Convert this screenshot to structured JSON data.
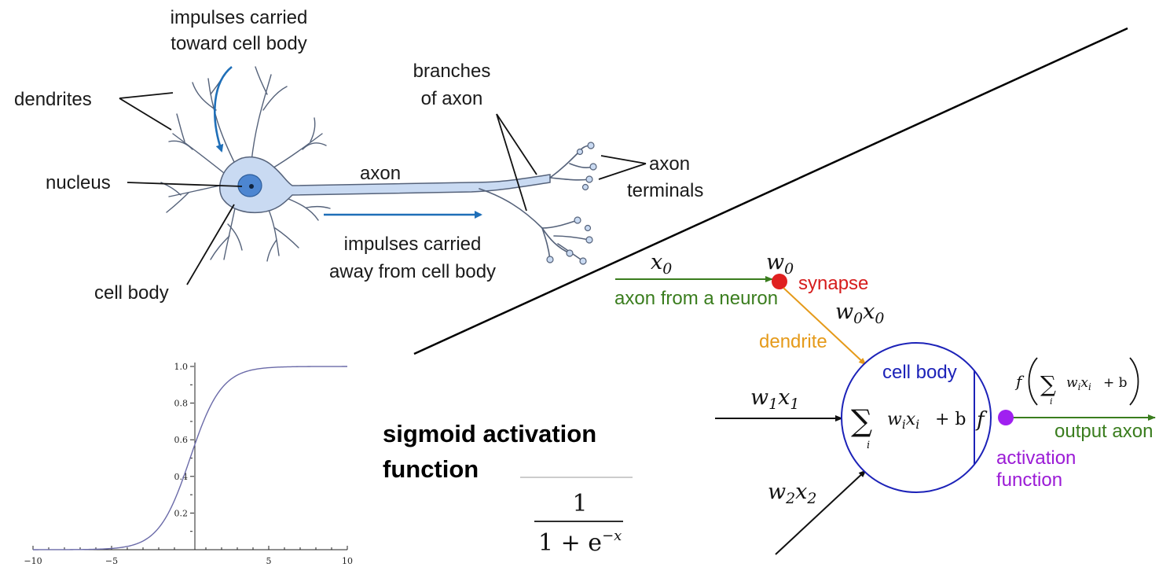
{
  "neuron": {
    "labels": {
      "impulses_in_1": "impulses carried",
      "impulses_in_2": "toward cell body",
      "dendrites": "dendrites",
      "nucleus": "nucleus",
      "cell_body": "cell body",
      "axon": "axon",
      "branches_1": "branches",
      "branches_2": "of axon",
      "terminals_1": "axon",
      "terminals_2": "terminals",
      "impulses_out_1": "impulses carried",
      "impulses_out_2": "away from cell body"
    },
    "colors": {
      "cell_fill": "#c9daf2",
      "cell_stroke": "#55627a",
      "nucleus": "#4d86d1",
      "arrow": "#1f6fb8"
    }
  },
  "model": {
    "x0": "x",
    "x0_sub": "0",
    "w0": "w",
    "w0_sub": "0",
    "w0x0_a": "w",
    "w0x0_a_sub": "0",
    "w0x0_b": "x",
    "w0x0_b_sub": "0",
    "w1x1_a": "w",
    "w1x1_a_sub": "1",
    "w1x1_b": "x",
    "w1x1_b_sub": "1",
    "w2x2_a": "w",
    "w2x2_a_sub": "2",
    "w2x2_b": "x",
    "w2x2_b_sub": "2",
    "synapse": "synapse",
    "axon_from": "axon from a neuron",
    "dendrite": "dendrite",
    "cell_body": "cell body",
    "sum_symbol": "∑",
    "sum_index": "i",
    "sum_term_w": "w",
    "sum_term_x": "x",
    "sum_term_sub": "i",
    "plus_b": "+ b",
    "f": "f",
    "output_axon": "output axon",
    "activation_1": "activation",
    "activation_2": "function",
    "out_f": "f",
    "colors": {
      "green": "#3a7d1e",
      "red": "#e02020",
      "orange": "#e59a1a",
      "blue": "#1c22b8",
      "purple": "#a020f0"
    }
  },
  "sigmoid": {
    "title_1": "sigmoid activation",
    "title_2": "function",
    "formula_num": "1",
    "formula_den": "1 + e",
    "formula_exp": "−x"
  },
  "chart_data": {
    "type": "line",
    "title": "",
    "xlabel": "",
    "ylabel": "",
    "xlim": [
      -10,
      10
    ],
    "ylim": [
      0,
      1
    ],
    "x_ticks": [
      -10,
      -5,
      5,
      10
    ],
    "x_tick_labels": [
      "−10",
      "−5",
      "5",
      "10"
    ],
    "y_ticks": [
      0.2,
      0.4,
      0.6,
      0.8,
      1.0
    ],
    "y_tick_labels": [
      "0.2",
      "0.4",
      "0.6",
      "0.8",
      "1.0"
    ],
    "series": [
      {
        "function": "1/(1+exp(-x))",
        "color": "#6a6aa8"
      }
    ],
    "grid": false
  }
}
